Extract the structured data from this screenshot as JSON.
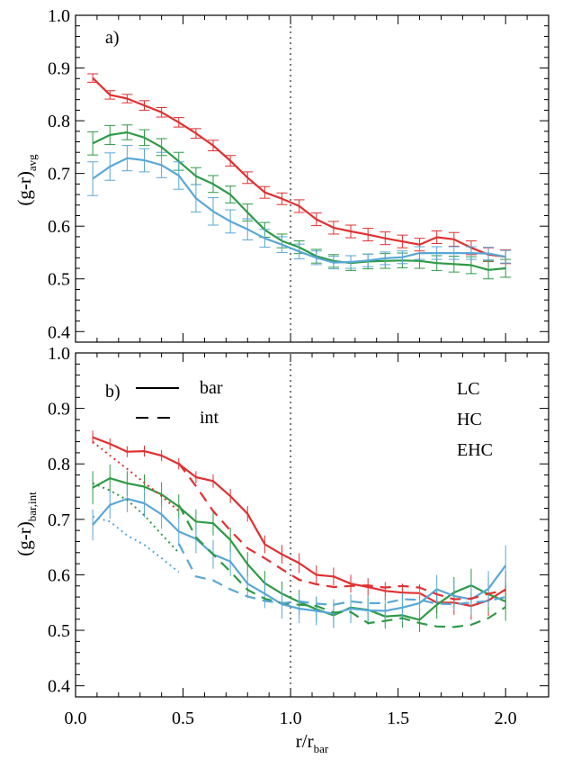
{
  "chart_data": [
    {
      "type": "line",
      "panel_label": "a)",
      "ylabel": "(g-r)",
      "ylabel_sub": "avg",
      "xlabel": "",
      "xlim": [
        0.0,
        2.2
      ],
      "ylim": [
        0.38,
        1.0
      ],
      "yticks": [
        "0.4",
        "0.5",
        "0.6",
        "0.7",
        "0.8",
        "0.9",
        "1.0"
      ],
      "xticks": [
        "0.0",
        "0.5",
        "1.0",
        "1.5",
        "2.0"
      ],
      "vline_x": 1.0,
      "x": [
        0.08,
        0.16,
        0.24,
        0.32,
        0.4,
        0.48,
        0.56,
        0.64,
        0.72,
        0.8,
        0.88,
        0.96,
        1.04,
        1.12,
        1.2,
        1.28,
        1.36,
        1.44,
        1.52,
        1.6,
        1.68,
        1.76,
        1.84,
        1.92,
        2.0
      ],
      "series": [
        {
          "name": "LC",
          "color": "#e03030",
          "style": "solid",
          "values": [
            0.881,
            0.849,
            0.842,
            0.829,
            0.816,
            0.797,
            0.776,
            0.753,
            0.724,
            0.692,
            0.664,
            0.652,
            0.638,
            0.613,
            0.597,
            0.59,
            0.584,
            0.577,
            0.571,
            0.565,
            0.579,
            0.575,
            0.559,
            0.546,
            0.542
          ],
          "errors": [
            0.008,
            0.008,
            0.008,
            0.009,
            0.009,
            0.009,
            0.009,
            0.01,
            0.01,
            0.011,
            0.011,
            0.011,
            0.012,
            0.012,
            0.012,
            0.012,
            0.012,
            0.012,
            0.012,
            0.012,
            0.012,
            0.013,
            0.013,
            0.013,
            0.013
          ]
        },
        {
          "name": "HC",
          "color": "#2e9a46",
          "style": "solid",
          "values": [
            0.757,
            0.773,
            0.778,
            0.768,
            0.75,
            0.723,
            0.695,
            0.68,
            0.66,
            0.626,
            0.593,
            0.572,
            0.56,
            0.543,
            0.534,
            0.53,
            0.533,
            0.534,
            0.535,
            0.534,
            0.53,
            0.528,
            0.526,
            0.517,
            0.52
          ],
          "errors": [
            0.022,
            0.018,
            0.014,
            0.015,
            0.016,
            0.017,
            0.016,
            0.016,
            0.016,
            0.016,
            0.014,
            0.013,
            0.012,
            0.013,
            0.012,
            0.014,
            0.014,
            0.014,
            0.014,
            0.014,
            0.014,
            0.015,
            0.016,
            0.017,
            0.017
          ]
        },
        {
          "name": "EHC",
          "color": "#5aa7d6",
          "style": "solid",
          "values": [
            0.69,
            0.713,
            0.729,
            0.725,
            0.716,
            0.696,
            0.653,
            0.628,
            0.609,
            0.594,
            0.577,
            0.565,
            0.552,
            0.54,
            0.531,
            0.532,
            0.535,
            0.539,
            0.541,
            0.549,
            0.549,
            0.549,
            0.549,
            0.548,
            0.542
          ],
          "errors": [
            0.032,
            0.026,
            0.024,
            0.022,
            0.024,
            0.026,
            0.026,
            0.026,
            0.022,
            0.02,
            0.017,
            0.015,
            0.014,
            0.013,
            0.012,
            0.012,
            0.012,
            0.012,
            0.012,
            0.012,
            0.012,
            0.012,
            0.012,
            0.012,
            0.012
          ]
        }
      ]
    },
    {
      "type": "line",
      "panel_label": "b)",
      "ylabel": "(g-r)",
      "ylabel_sub": "bar,int",
      "xlabel": "r/r",
      "xlabel_sub": "bar",
      "xlim": [
        0.0,
        2.2
      ],
      "ylim": [
        0.38,
        1.0
      ],
      "yticks": [
        "0.4",
        "0.5",
        "0.6",
        "0.7",
        "0.8",
        "0.9",
        "1.0"
      ],
      "xticks": [
        "0.0",
        "0.5",
        "1.0",
        "1.5",
        "2.0"
      ],
      "vline_x": 1.0,
      "style_legend": [
        {
          "label": "bar",
          "style": "solid"
        },
        {
          "label": "int",
          "style": "dashed"
        }
      ],
      "color_legend": [
        {
          "label": "LC",
          "color": "#e03030"
        },
        {
          "label": "HC",
          "color": "#2e9a46"
        },
        {
          "label": "EHC",
          "color": "#5aa7d6"
        }
      ],
      "x": [
        0.08,
        0.16,
        0.24,
        0.32,
        0.4,
        0.48,
        0.56,
        0.64,
        0.72,
        0.8,
        0.88,
        0.96,
        1.04,
        1.12,
        1.2,
        1.28,
        1.36,
        1.44,
        1.52,
        1.6,
        1.68,
        1.76,
        1.84,
        1.92,
        2.0
      ],
      "series": [
        {
          "name": "LC",
          "color": "#e03030",
          "style": "solid",
          "values": [
            0.848,
            0.836,
            0.822,
            0.823,
            0.815,
            0.8,
            0.776,
            0.769,
            0.742,
            0.71,
            0.655,
            0.637,
            0.621,
            0.6,
            0.597,
            0.584,
            0.578,
            0.571,
            0.568,
            0.567,
            0.55,
            0.55,
            0.544,
            0.554,
            0.574
          ],
          "errors": [
            0.012,
            0.01,
            0.01,
            0.01,
            0.01,
            0.01,
            0.011,
            0.012,
            0.013,
            0.014,
            0.016,
            0.017,
            0.018,
            0.017,
            0.016,
            0.016,
            0.016,
            0.016,
            0.016,
            0.016,
            0.02,
            0.022,
            0.025,
            0.028,
            0.032
          ]
        },
        {
          "name": "HC",
          "color": "#2e9a46",
          "style": "solid",
          "values": [
            0.757,
            0.774,
            0.765,
            0.759,
            0.745,
            0.723,
            0.696,
            0.693,
            0.663,
            0.619,
            0.585,
            0.566,
            0.551,
            0.538,
            0.527,
            0.541,
            0.537,
            0.525,
            0.527,
            0.519,
            0.546,
            0.568,
            0.581,
            0.565,
            0.552
          ],
          "errors": [
            0.03,
            0.025,
            0.022,
            0.022,
            0.022,
            0.022,
            0.022,
            0.022,
            0.022,
            0.022,
            0.022,
            0.022,
            0.022,
            0.022,
            0.022,
            0.022,
            0.022,
            0.022,
            0.022,
            0.022,
            0.025,
            0.028,
            0.03,
            0.032,
            0.035
          ]
        },
        {
          "name": "EHC",
          "color": "#5aa7d6",
          "style": "solid",
          "values": [
            0.69,
            0.726,
            0.737,
            0.729,
            0.709,
            0.678,
            0.665,
            0.637,
            0.624,
            0.584,
            0.566,
            0.547,
            0.539,
            0.535,
            0.53,
            0.539,
            0.536,
            0.535,
            0.541,
            0.549,
            0.574,
            0.562,
            0.556,
            0.575,
            0.617
          ],
          "errors": [
            0.028,
            0.025,
            0.024,
            0.025,
            0.026,
            0.026,
            0.026,
            0.026,
            0.026,
            0.026,
            0.026,
            0.026,
            0.026,
            0.026,
            0.026,
            0.026,
            0.026,
            0.026,
            0.026,
            0.026,
            0.026,
            0.026,
            0.028,
            0.032,
            0.036
          ]
        },
        {
          "name": "LC int",
          "color": "#e03030",
          "style": "dashed",
          "values": [
            null,
            null,
            null,
            null,
            null,
            0.801,
            0.76,
            0.715,
            0.68,
            0.648,
            0.63,
            0.61,
            0.591,
            0.583,
            0.578,
            0.58,
            0.581,
            0.577,
            0.58,
            0.577,
            0.565,
            0.556,
            0.557,
            0.566,
            0.572
          ]
        },
        {
          "name": "HC int",
          "color": "#2e9a46",
          "style": "dashed",
          "values": [
            null,
            null,
            null,
            null,
            null,
            0.726,
            0.668,
            0.637,
            0.606,
            0.573,
            0.557,
            0.549,
            0.546,
            0.544,
            0.532,
            0.533,
            0.513,
            0.517,
            0.522,
            0.513,
            0.507,
            0.506,
            0.51,
            0.522,
            0.542
          ]
        },
        {
          "name": "EHC int",
          "color": "#5aa7d6",
          "style": "dashed",
          "values": [
            null,
            null,
            null,
            null,
            null,
            0.656,
            0.597,
            0.59,
            0.574,
            0.561,
            0.553,
            0.549,
            0.552,
            0.548,
            0.546,
            0.552,
            0.549,
            0.549,
            0.556,
            0.555,
            0.548,
            0.547,
            0.55,
            0.553,
            0.56
          ]
        },
        {
          "name": "LC dotted",
          "color": "#e03030",
          "style": "dotted",
          "values": [
            0.84,
            0.815,
            0.791,
            0.766,
            0.742,
            0.715,
            null,
            null,
            null,
            null,
            null,
            null,
            null,
            null,
            null,
            null,
            null,
            null,
            null,
            null,
            null,
            null,
            null,
            null,
            null
          ]
        },
        {
          "name": "HC dotted",
          "color": "#2e9a46",
          "style": "dotted",
          "values": [
            0.765,
            0.752,
            0.735,
            0.707,
            0.673,
            0.64,
            null,
            null,
            null,
            null,
            null,
            null,
            null,
            null,
            null,
            null,
            null,
            null,
            null,
            null,
            null,
            null,
            null,
            null,
            null
          ]
        },
        {
          "name": "EHC dotted",
          "color": "#5aa7d6",
          "style": "dotted",
          "values": [
            0.705,
            0.696,
            0.671,
            0.654,
            0.63,
            0.605,
            null,
            null,
            null,
            null,
            null,
            null,
            null,
            null,
            null,
            null,
            null,
            null,
            null,
            null,
            null,
            null,
            null,
            null,
            null
          ]
        }
      ]
    }
  ]
}
